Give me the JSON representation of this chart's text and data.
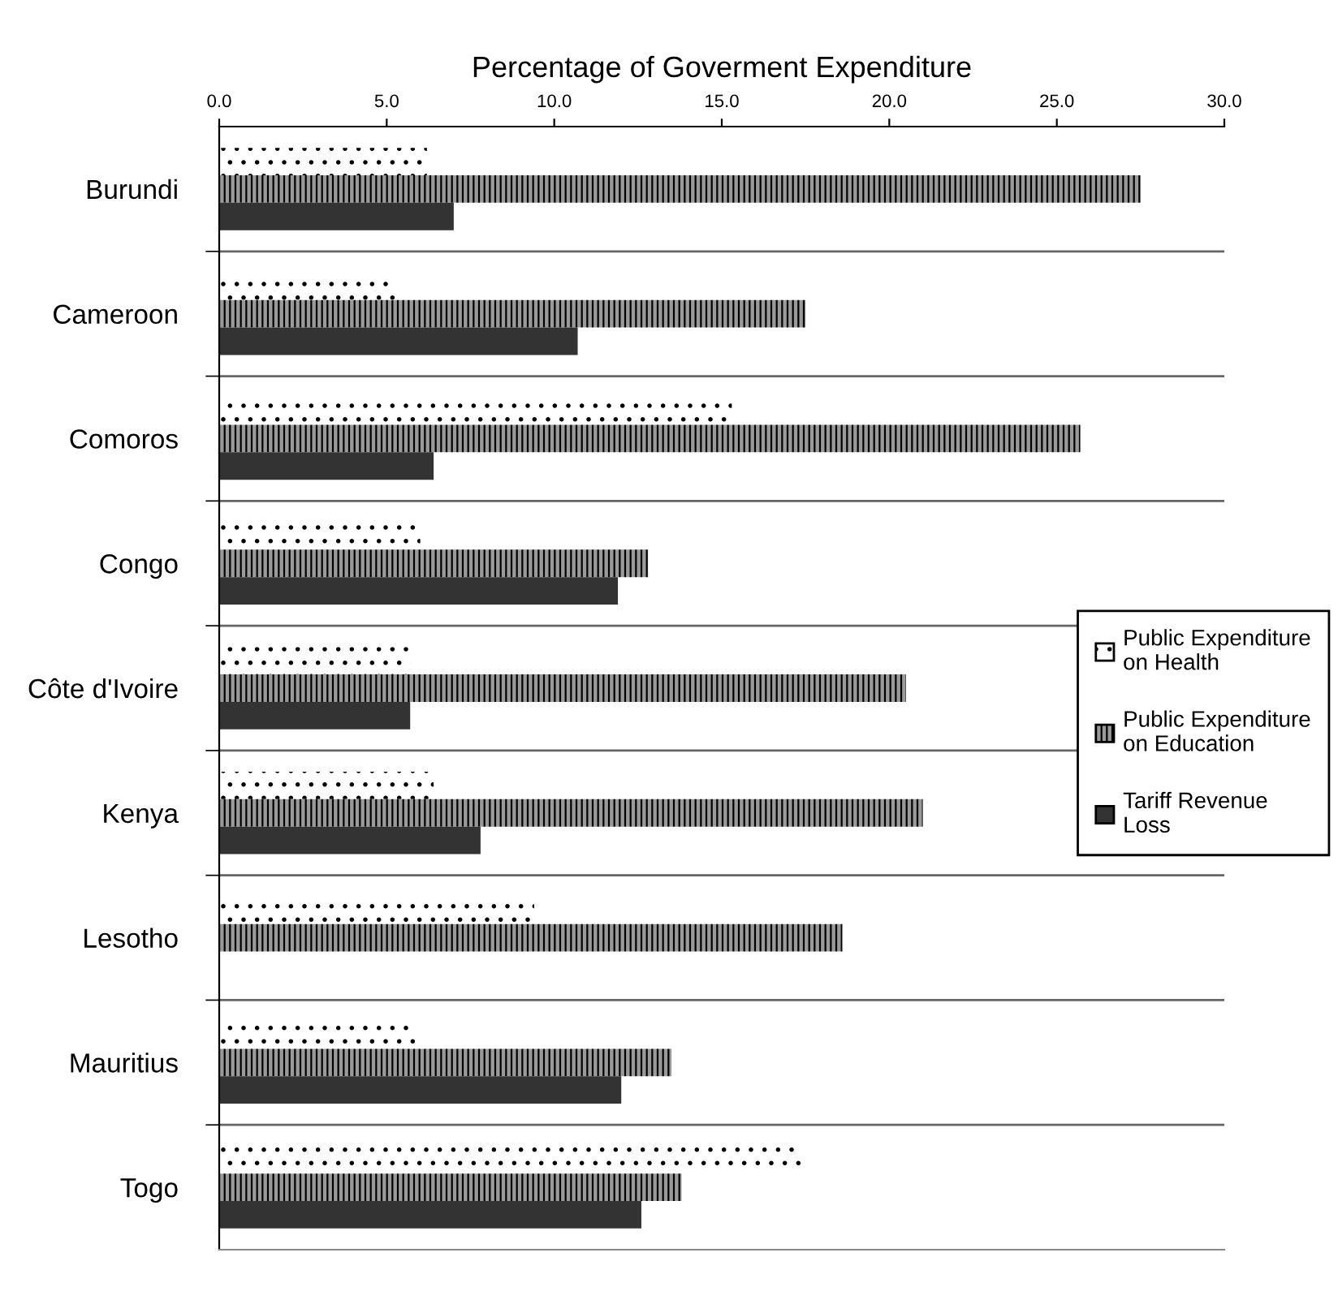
{
  "chart_data": {
    "type": "bar",
    "orientation": "horizontal",
    "title": "Percentage of Goverment Expenditure",
    "categories": [
      "Burundi",
      "Cameroon",
      "Comoros",
      "Congo",
      "Côte d'Ivoire",
      "Kenya",
      "Lesotho",
      "Mauritius",
      "Togo"
    ],
    "series": [
      {
        "name": "Public Expenditure on Health",
        "color": "#ffffff",
        "values": [
          6.2,
          5.3,
          15.3,
          6.0,
          5.7,
          6.4,
          9.4,
          5.9,
          17.4
        ]
      },
      {
        "name": "Public Expenditure on Education",
        "color": "#9a9a9a",
        "values": [
          27.5,
          17.5,
          25.7,
          12.8,
          20.5,
          21.0,
          18.6,
          13.5,
          13.8
        ]
      },
      {
        "name": "Tariff Revenue Loss",
        "color": "#333333",
        "values": [
          7.0,
          10.7,
          6.4,
          11.9,
          5.7,
          7.8,
          null,
          12.0,
          12.6
        ]
      }
    ],
    "xlim": [
      0,
      30
    ],
    "xticks": [
      {
        "value": 0,
        "label": "0.0"
      },
      {
        "value": 5,
        "label": "5.0"
      },
      {
        "value": 10,
        "label": "10.0"
      },
      {
        "value": 15,
        "label": "15.0"
      },
      {
        "value": 20,
        "label": "20.0"
      },
      {
        "value": 25,
        "label": "25.0"
      },
      {
        "value": 30,
        "label": "30.0"
      }
    ],
    "grid": "y",
    "legend": "right"
  }
}
